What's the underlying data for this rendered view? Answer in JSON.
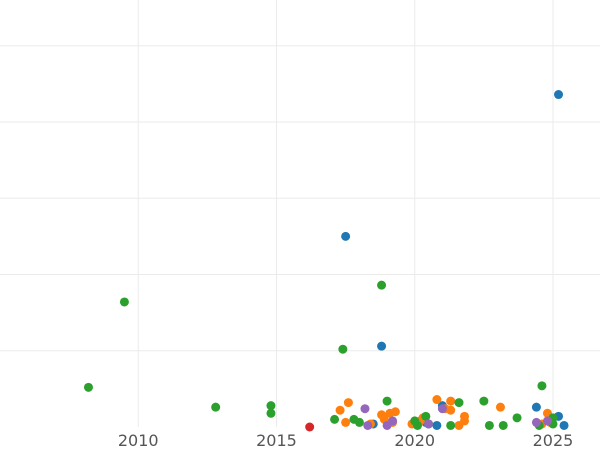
{
  "chart_data": {
    "type": "scatter",
    "title": "",
    "xlabel": "",
    "ylabel": "",
    "xlim": [
      2005.0,
      2026.7
    ],
    "ylim": [
      0,
      28
    ],
    "x_ticks": [
      2010,
      2015,
      2020,
      2025
    ],
    "x_tick_labels": [
      "2010",
      "2015",
      "2020",
      "2025"
    ],
    "y_gridlines": [
      5,
      10,
      15,
      20,
      25
    ],
    "y_tick_labels_visible": false,
    "grid": true,
    "legend": "none",
    "series": [
      {
        "color": "#1f77b4",
        "points": [
          {
            "x": 2017.5,
            "y": 12.5
          },
          {
            "x": 2018.8,
            "y": 5.3
          },
          {
            "x": 2021.0,
            "y": 1.4
          },
          {
            "x": 2024.4,
            "y": 1.3
          },
          {
            "x": 2025.2,
            "y": 0.7
          },
          {
            "x": 2025.4,
            "y": 0.1
          },
          {
            "x": 2025.2,
            "y": 21.8
          },
          {
            "x": 2020.8,
            "y": 0.1
          },
          {
            "x": 2020.4,
            "y": 0.3
          },
          {
            "x": 2018.5,
            "y": 0.2
          }
        ]
      },
      {
        "color": "#ff7f0e",
        "points": [
          {
            "x": 2017.3,
            "y": 1.1
          },
          {
            "x": 2017.6,
            "y": 1.6
          },
          {
            "x": 2017.5,
            "y": 0.3
          },
          {
            "x": 2018.4,
            "y": 0.2
          },
          {
            "x": 2018.8,
            "y": 0.8
          },
          {
            "x": 2018.9,
            "y": 0.5
          },
          {
            "x": 2019.1,
            "y": 0.9
          },
          {
            "x": 2019.3,
            "y": 1.0
          },
          {
            "x": 2019.2,
            "y": 0.3
          },
          {
            "x": 2019.9,
            "y": 0.2
          },
          {
            "x": 2020.2,
            "y": 0.4
          },
          {
            "x": 2020.3,
            "y": 0.6
          },
          {
            "x": 2020.8,
            "y": 1.8
          },
          {
            "x": 2021.1,
            "y": 1.2
          },
          {
            "x": 2021.3,
            "y": 1.1
          },
          {
            "x": 2021.3,
            "y": 1.7
          },
          {
            "x": 2021.6,
            "y": 0.1
          },
          {
            "x": 2021.8,
            "y": 0.4
          },
          {
            "x": 2021.8,
            "y": 0.7
          },
          {
            "x": 2023.1,
            "y": 1.3
          },
          {
            "x": 2024.8,
            "y": 0.9
          },
          {
            "x": 2024.9,
            "y": 0.3
          },
          {
            "x": 2024.6,
            "y": 0.2
          }
        ]
      },
      {
        "color": "#2ca02c",
        "points": [
          {
            "x": 2008.2,
            "y": 2.6
          },
          {
            "x": 2009.5,
            "y": 8.2
          },
          {
            "x": 2012.8,
            "y": 1.3
          },
          {
            "x": 2014.8,
            "y": 1.4
          },
          {
            "x": 2014.8,
            "y": 0.9
          },
          {
            "x": 2017.1,
            "y": 0.5
          },
          {
            "x": 2017.4,
            "y": 5.1
          },
          {
            "x": 2017.8,
            "y": 0.5
          },
          {
            "x": 2018.0,
            "y": 0.3
          },
          {
            "x": 2018.8,
            "y": 9.3
          },
          {
            "x": 2019.0,
            "y": 1.7
          },
          {
            "x": 2020.1,
            "y": 0.1
          },
          {
            "x": 2020.0,
            "y": 0.4
          },
          {
            "x": 2020.4,
            "y": 0.7
          },
          {
            "x": 2020.5,
            "y": 0.2
          },
          {
            "x": 2021.3,
            "y": 0.1
          },
          {
            "x": 2021.6,
            "y": 1.6
          },
          {
            "x": 2022.5,
            "y": 1.7
          },
          {
            "x": 2022.7,
            "y": 0.1
          },
          {
            "x": 2023.2,
            "y": 0.1
          },
          {
            "x": 2023.7,
            "y": 0.6
          },
          {
            "x": 2024.5,
            "y": 0.1
          },
          {
            "x": 2024.6,
            "y": 2.7
          },
          {
            "x": 2025.0,
            "y": 0.6
          },
          {
            "x": 2025.0,
            "y": 0.2
          }
        ]
      },
      {
        "color": "#d62728",
        "points": [
          {
            "x": 2016.2,
            "y": 0.0
          }
        ]
      },
      {
        "color": "#9467bd",
        "points": [
          {
            "x": 2018.2,
            "y": 1.2
          },
          {
            "x": 2018.3,
            "y": 0.1
          },
          {
            "x": 2019.0,
            "y": 0.1
          },
          {
            "x": 2019.2,
            "y": 0.4
          },
          {
            "x": 2020.5,
            "y": 0.2
          },
          {
            "x": 2021.0,
            "y": 1.2
          },
          {
            "x": 2024.4,
            "y": 0.3
          },
          {
            "x": 2024.8,
            "y": 0.4
          }
        ]
      }
    ]
  }
}
